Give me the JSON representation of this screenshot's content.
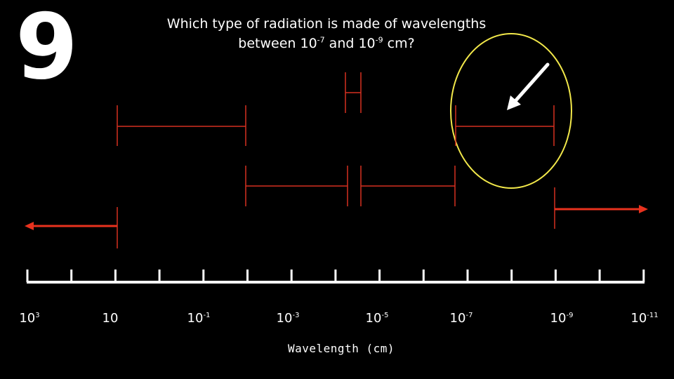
{
  "slide_number": "9",
  "question": {
    "line1": "Which type of radiation is made of wavelengths",
    "line2_prefix": "between 10",
    "exp_a": "-7",
    "middle": " and 10",
    "exp_b": "-9",
    "suffix": " cm?"
  },
  "axis": {
    "title": "Wavelength (cm)",
    "labels": [
      {
        "base": "10",
        "exp": "3"
      },
      {
        "base": "10",
        "exp": ""
      },
      {
        "base": "10",
        "exp": "-1"
      },
      {
        "base": "10",
        "exp": "-3"
      },
      {
        "base": "10",
        "exp": "-5"
      },
      {
        "base": "10",
        "exp": "-7"
      },
      {
        "base": "10",
        "exp": "-9"
      },
      {
        "base": "10",
        "exp": "-11"
      }
    ]
  },
  "colors": {
    "background": "#000000",
    "range_bars": "#d63020",
    "arrows": "#e8321e",
    "highlight_circle": "#f2e84a",
    "pointer_arrow": "#ffffff",
    "axis": "#ffffff"
  }
}
